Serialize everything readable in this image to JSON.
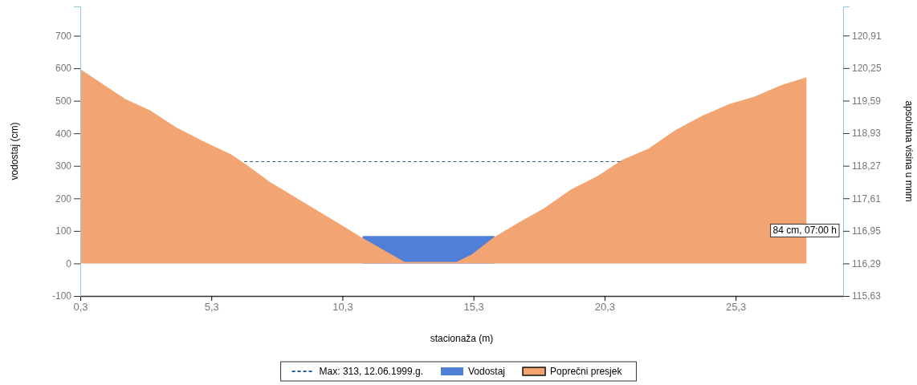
{
  "chart_data": {
    "type": "area",
    "xlabel": "stacionaža (m)",
    "ylabel": "vodostaj (cm)",
    "y2label": "apsolutna visina u mnm",
    "xlim": [
      0.3,
      29.4
    ],
    "xticks": [
      {
        "value": 0.3,
        "label": "0,3"
      },
      {
        "value": 5.3,
        "label": "5,3"
      },
      {
        "value": 10.3,
        "label": "10,3"
      },
      {
        "value": 15.3,
        "label": "15,3"
      },
      {
        "value": 20.3,
        "label": "20,3"
      },
      {
        "value": 25.3,
        "label": "25,3"
      }
    ],
    "ylim": [
      -100,
      790
    ],
    "yticks": [
      -100,
      0,
      100,
      200,
      300,
      400,
      500,
      600,
      700
    ],
    "y2lim": [
      115.63,
      121.5
    ],
    "y2ticks": [
      {
        "value": 115.63,
        "label": "115,63"
      },
      {
        "value": 116.29,
        "label": "116,29"
      },
      {
        "value": 116.95,
        "label": "116,95"
      },
      {
        "value": 117.61,
        "label": "117,61"
      },
      {
        "value": 118.27,
        "label": "118,27"
      },
      {
        "value": 118.93,
        "label": "118,93"
      },
      {
        "value": 119.59,
        "label": "119,59"
      },
      {
        "value": 120.25,
        "label": "120,25"
      },
      {
        "value": 120.91,
        "label": "120,91"
      }
    ],
    "series": [
      {
        "name": "Max: 313, 12.06.1999.g.",
        "type": "line",
        "line_style": "dashed",
        "color": "#2a5f9e",
        "x": [
          6.55,
          20.9
        ],
        "values": [
          313,
          313
        ]
      },
      {
        "name": "Vodostaj",
        "color": "#4f7fd6",
        "x": [
          11.07,
          16.1
        ],
        "values": [
          84,
          84
        ]
      },
      {
        "name": "Poprečni presjek",
        "color": "#f2a572",
        "x": [
          0.3,
          2.02,
          2.97,
          3.94,
          5.03,
          6.04,
          6.61,
          7.54,
          8.47,
          10.32,
          11.03,
          12.67,
          14.65,
          15.22,
          16.07,
          16.98,
          18.0,
          19.03,
          20.05,
          20.96,
          21.98,
          23.0,
          24.03,
          25.05,
          26.0,
          27.03,
          28.0
        ],
        "values": [
          597,
          505,
          470,
          419,
          374,
          336,
          305,
          250,
          205,
          115,
          80,
          5,
          5,
          27,
          80,
          124,
          170,
          228,
          269,
          318,
          353,
          410,
          454,
          490,
          512,
          548,
          572
        ]
      }
    ],
    "annotations": [
      "84 cm, 07:00 h"
    ],
    "legend": "bottom",
    "grid": false
  }
}
